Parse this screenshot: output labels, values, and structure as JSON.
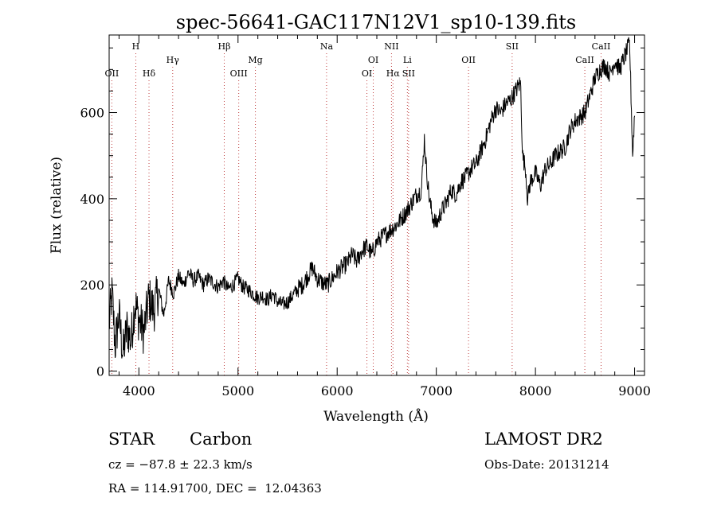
{
  "chart_data": {
    "type": "line",
    "title": "spec-56641-GAC117N12V1_sp10-139.fits",
    "xlabel": "Wavelength (Å)",
    "ylabel": "Flux (relative)",
    "xlim": [
      3700,
      9100
    ],
    "ylim": [
      -10,
      780
    ],
    "xticks": [
      4000,
      5000,
      6000,
      7000,
      8000,
      9000
    ],
    "yticks": [
      0,
      200,
      400,
      600
    ],
    "grid": false,
    "series": [
      {
        "x": [
          3700,
          3730,
          3760,
          3800,
          3840,
          3880,
          3920,
          3960,
          4000,
          4050,
          4100,
          4150,
          4200,
          4250,
          4300,
          4350,
          4400,
          4450,
          4500,
          4550,
          4600,
          4650,
          4700,
          4750,
          4800,
          4850,
          4900,
          4950,
          5000,
          5050,
          5100,
          5150,
          5200,
          5250,
          5300,
          5350,
          5400,
          5450,
          5500,
          5550,
          5600,
          5650,
          5700,
          5750,
          5800,
          5850,
          5900,
          5950,
          6000,
          6050,
          6100,
          6150,
          6200,
          6250,
          6300,
          6350,
          6400,
          6450,
          6500,
          6550,
          6600,
          6650,
          6700,
          6750,
          6800,
          6850,
          6880,
          6900,
          6930,
          6960,
          7000,
          7050,
          7100,
          7150,
          7200,
          7250,
          7300,
          7350,
          7400,
          7450,
          7500,
          7550,
          7600,
          7650,
          7700,
          7750,
          7800,
          7850,
          7870,
          7900,
          7920,
          7950,
          8000,
          8050,
          8100,
          8150,
          8200,
          8250,
          8300,
          8350,
          8400,
          8450,
          8500,
          8550,
          8600,
          8650,
          8700,
          8750,
          8800,
          8850,
          8900,
          8950,
          8980,
          9000
        ],
        "y": [
          110,
          180,
          60,
          130,
          40,
          100,
          70,
          160,
          120,
          90,
          170,
          140,
          190,
          130,
          210,
          180,
          220,
          200,
          230,
          210,
          220,
          200,
          215,
          205,
          195,
          210,
          190,
          200,
          215,
          195,
          190,
          180,
          170,
          175,
          165,
          180,
          160,
          155,
          160,
          175,
          190,
          200,
          220,
          240,
          215,
          205,
          200,
          215,
          230,
          240,
          250,
          270,
          255,
          280,
          290,
          270,
          300,
          310,
          320,
          330,
          340,
          355,
          370,
          390,
          410,
          420,
          540,
          470,
          400,
          360,
          340,
          370,
          390,
          420,
          410,
          440,
          450,
          470,
          480,
          510,
          540,
          580,
          610,
          600,
          620,
          630,
          650,
          670,
          500,
          470,
          400,
          440,
          460,
          430,
          470,
          480,
          500,
          510,
          520,
          560,
          580,
          590,
          600,
          640,
          680,
          700,
          710,
          690,
          720,
          700,
          730,
          760,
          500,
          600
        ]
      }
    ],
    "lines": [
      {
        "label": "OII",
        "x": 3727,
        "row": "bottom"
      },
      {
        "label": "H",
        "x": 3969,
        "row": "top"
      },
      {
        "label": "Hδ",
        "x": 4102,
        "row": "bottom"
      },
      {
        "label": "Hγ",
        "x": 4341,
        "row": "middle"
      },
      {
        "label": "Hβ",
        "x": 4861,
        "row": "top"
      },
      {
        "label": "OIII",
        "x": 5007,
        "row": "bottom"
      },
      {
        "label": "Mg",
        "x": 5175,
        "row": "middle"
      },
      {
        "label": "Na",
        "x": 5893,
        "row": "top"
      },
      {
        "label": "OI",
        "x": 6300,
        "row": "bottom"
      },
      {
        "label": "OI",
        "x": 6364,
        "row": "middle"
      },
      {
        "label": "NII",
        "x": 6548,
        "row": "top"
      },
      {
        "label": "Hα",
        "x": 6563,
        "row": "bottom"
      },
      {
        "label": "Li",
        "x": 6708,
        "row": "middle"
      },
      {
        "label": "SII",
        "x": 6720,
        "row": "bottom"
      },
      {
        "label": "OII",
        "x": 7325,
        "row": "middle"
      },
      {
        "label": "SII",
        "x": 7765,
        "row": "top"
      },
      {
        "label": "CaII",
        "x": 8498,
        "row": "middle"
      },
      {
        "label": "CaII",
        "x": 8662,
        "row": "top"
      }
    ]
  },
  "info": {
    "class": "STAR",
    "subclass": "Carbon",
    "cz": "cz = −87.8 ± 22.3 km/s",
    "coords": "RA = 114.91700, DEC =  12.04363",
    "survey": "LAMOST DR2",
    "obs_date": "Obs-Date: 20131214"
  }
}
